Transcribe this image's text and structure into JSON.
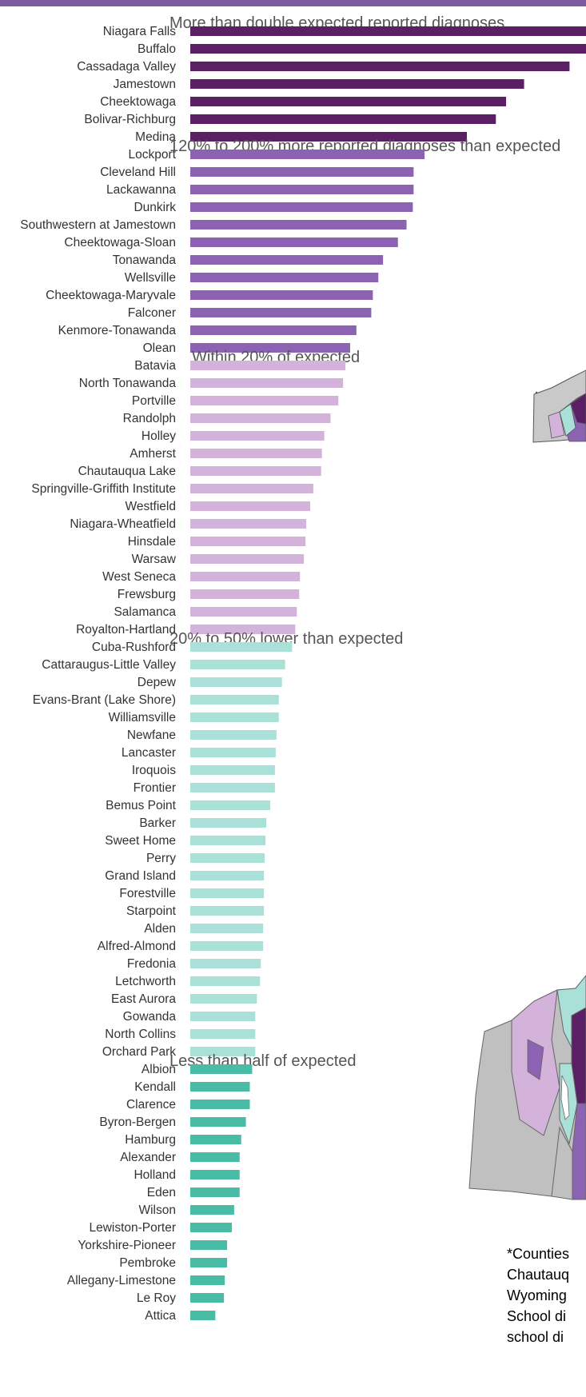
{
  "chart_data": {
    "type": "bar",
    "orientation": "horizontal",
    "xlim": [
      0,
      505
    ],
    "grid": false,
    "legend": "none",
    "groups": [
      {
        "label": "More than double expected reported diagnoses",
        "color": "#5b1f66",
        "categories": [
          "Niagara Falls",
          "Buffalo",
          "Cassadaga Valley",
          "Jamestown",
          "Cheektowaga",
          "Bolivar-Richburg",
          "Medina"
        ],
        "values": [
          505,
          505,
          484,
          426,
          403,
          390,
          353
        ]
      },
      {
        "label": "120% to 200% more reported diagnoses than expected",
        "color": "#8c63b2",
        "categories": [
          "Lockport",
          "Cleveland Hill",
          "Lackawanna",
          "Dunkirk",
          "Southwestern at Jamestown",
          "Cheektowaga-Sloan",
          "Tonawanda",
          "Wellsville",
          "Cheektowaga-Maryvale",
          "Falconer",
          "Kenmore-Tonawanda",
          "Olean"
        ],
        "values": [
          299,
          285,
          285,
          284,
          276,
          265,
          246,
          240,
          233,
          231,
          212,
          204
        ]
      },
      {
        "label": "Within 20% of expected",
        "color": "#d4b3da",
        "categories": [
          "Batavia",
          "North Tonawanda",
          "Portville",
          "Randolph",
          "Holley",
          "Amherst",
          "Chautauqua Lake",
          "Springville-Griffith Institute",
          "Westfield",
          "Niagara-Wheatfield",
          "Hinsdale",
          "Warsaw",
          "West Seneca",
          "Frewsburg",
          "Salamanca",
          "Royalton-Hartland"
        ],
        "values": [
          198,
          195,
          189,
          179,
          171,
          168,
          167,
          157,
          153,
          148,
          147,
          145,
          140,
          139,
          136,
          134
        ]
      },
      {
        "label": "20% to 50% lower than expected",
        "color": "#a9e0d8",
        "categories": [
          "Cuba-Rushford",
          "Cattaraugus-Little Valley",
          "Depew",
          "Evans-Brant (Lake Shore)",
          "Williamsville",
          "Newfane",
          "Lancaster",
          "Iroquois",
          "Frontier",
          "Bemus Point",
          "Barker",
          "Sweet Home",
          "Perry",
          "Grand Island",
          "Forestville",
          "Starpoint",
          "Alden",
          "Alfred-Almond",
          "Fredonia",
          "Letchworth",
          "East Aurora",
          "Gowanda",
          "North Collins",
          "Orchard Park"
        ],
        "values": [
          130,
          121,
          117,
          113,
          113,
          110,
          109,
          108,
          108,
          102,
          97,
          96,
          95,
          94,
          94,
          94,
          93,
          93,
          90,
          89,
          85,
          83,
          83,
          83
        ]
      },
      {
        "label": "Less than half of expected",
        "color": "#48bca5",
        "categories": [
          "Albion",
          "Kendall",
          "Clarence",
          "Byron-Bergen",
          "Hamburg",
          "Alexander",
          "Holland",
          "Eden",
          "Wilson",
          "Lewiston-Porter",
          "Yorkshire-Pioneer",
          "Pembroke",
          "Allegany-Limestone",
          "Le Roy",
          "Attica"
        ],
        "values": [
          79,
          76,
          76,
          71,
          65,
          63,
          63,
          63,
          56,
          53,
          47,
          47,
          44,
          43,
          32
        ]
      }
    ]
  },
  "footnote": {
    "lines": [
      "*Counties",
      "Chautauq",
      "Wyoming",
      "School di",
      "school di"
    ]
  },
  "maps": {
    "fill_colors": [
      "#c0c0c0",
      "#d4b3da",
      "#a9e0d8",
      "#5b1f66",
      "#8c63b2"
    ]
  }
}
